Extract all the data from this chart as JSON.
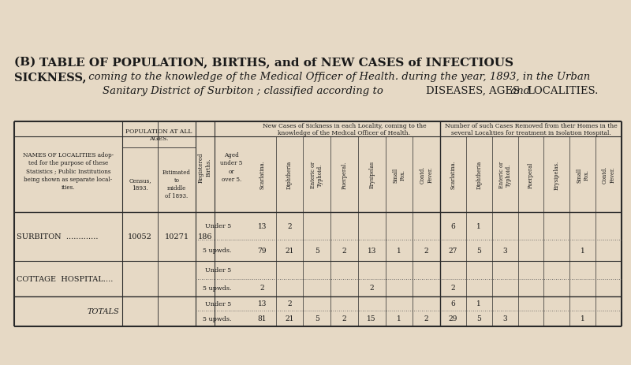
{
  "bg_color": "#e6d9c5",
  "title_b": "(B) ",
  "title_rest1": "TABLE OF POPULATION, BIRTHS, and of NEW CASES of INFECTIOUS",
  "title_line2": "SICKNESS, coming to the knowledge of the Medical Officer of Health. during the year, 1893, in the Urban",
  "title_line3": "Sanitary District of Surbiton ; classified according to DISEASES, AGES and LOCALITIES.",
  "diseases_nc": [
    "Scarlatina.",
    "Diphtheria",
    "Enteric or\nTyphoid.",
    "Puerperal.",
    "Erysipelas",
    "Small\nPox.",
    "Contd.\nFever."
  ],
  "diseases_rm": [
    "Scarlatina.",
    "Diphtheria",
    "Enteric or\nTyphoid.",
    "Puerperal",
    "Erysipelas.",
    "Small\nPox.",
    "Contd.\nFever."
  ],
  "surbiton_census": "10052",
  "surbiton_estimated": "10271",
  "surbiton_registered": "186",
  "surbiton_u5": [
    "13",
    "2",
    "",
    "",
    "",
    "",
    "",
    "6",
    "1",
    "",
    "",
    "",
    "",
    ""
  ],
  "surbiton_up": [
    "79",
    "21",
    "5",
    "2",
    "13",
    "1",
    "2",
    "27",
    "5",
    "3",
    "",
    "",
    "1",
    ""
  ],
  "cottage_u5": [
    "",
    "",
    "",
    "",
    "",
    "",
    "",
    "",
    "",
    "",
    "",
    "",
    "",
    ""
  ],
  "cottage_up": [
    "2",
    "",
    "",
    "",
    "2",
    "",
    "",
    "2",
    "",
    "",
    "",
    "",
    "",
    ""
  ],
  "totals_u5": [
    "13",
    "2",
    "",
    "",
    "",
    "",
    "",
    "6",
    "1",
    "",
    "",
    "",
    "",
    ""
  ],
  "totals_up": [
    "81",
    "21",
    "5",
    "2",
    "15",
    "1",
    "2",
    "29",
    "5",
    "3",
    "",
    "",
    "1",
    ""
  ]
}
